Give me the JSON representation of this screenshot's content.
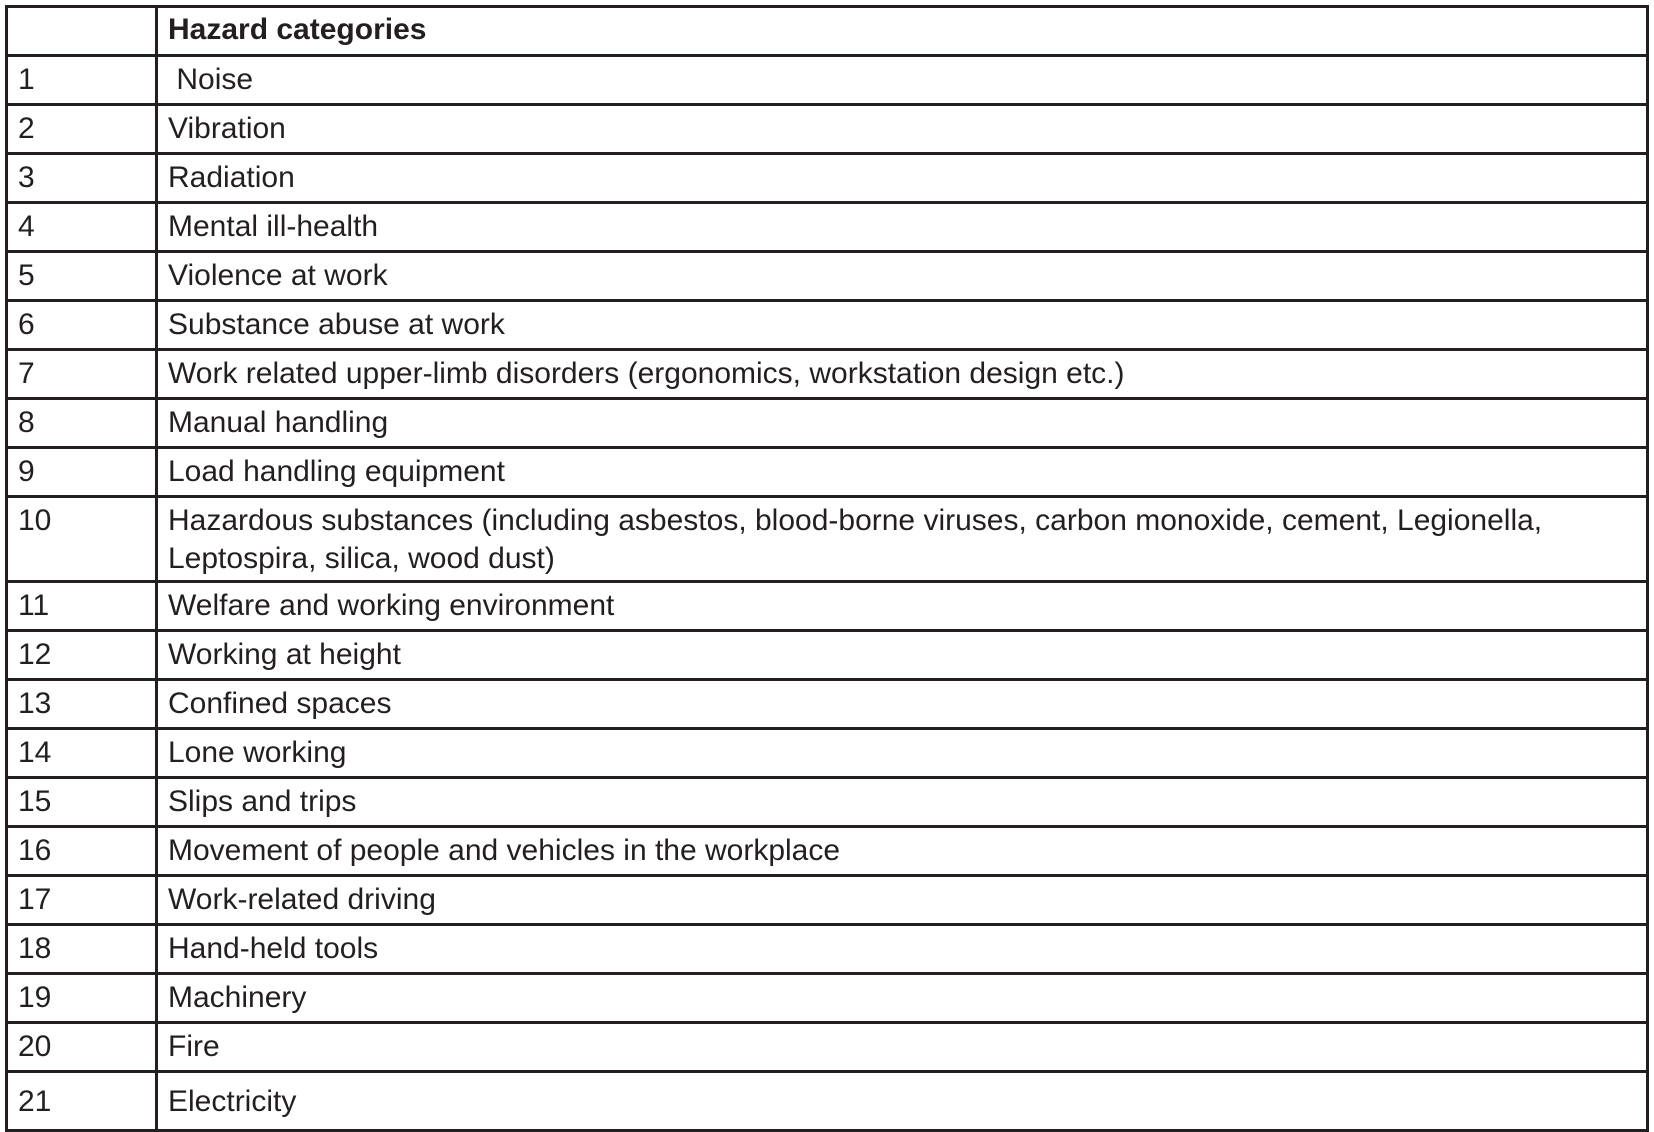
{
  "table": {
    "header": [
      "",
      "Hazard categories"
    ],
    "rows": [
      {
        "num": "1",
        "label": " Noise"
      },
      {
        "num": "2",
        "label": "Vibration"
      },
      {
        "num": "3",
        "label": "Radiation"
      },
      {
        "num": "4",
        "label": "Mental ill-health"
      },
      {
        "num": "5",
        "label": "Violence at work"
      },
      {
        "num": "6",
        "label": "Substance abuse at work"
      },
      {
        "num": "7",
        "label": "Work related upper-limb disorders (ergonomics, workstation design etc.)"
      },
      {
        "num": "8",
        "label": "Manual handling"
      },
      {
        "num": "9",
        "label": "Load handling equipment"
      },
      {
        "num": "10",
        "label": "Hazardous substances (including asbestos, blood-borne viruses, carbon monoxide, cement, Legionella, Leptospira, silica, wood dust)"
      },
      {
        "num": "11",
        "label": "Welfare and working environment"
      },
      {
        "num": "12",
        "label": "Working at height"
      },
      {
        "num": "13",
        "label": "Confined spaces"
      },
      {
        "num": "14",
        "label": "Lone working"
      },
      {
        "num": "15",
        "label": "Slips and trips"
      },
      {
        "num": "16",
        "label": "Movement of people and vehicles in the workplace"
      },
      {
        "num": "17",
        "label": "Work-related driving"
      },
      {
        "num": "18",
        "label": "Hand-held tools"
      },
      {
        "num": "19",
        "label": "Machinery"
      },
      {
        "num": "20",
        "label": "Fire"
      },
      {
        "num": "21",
        "label": "Electricity"
      }
    ]
  }
}
